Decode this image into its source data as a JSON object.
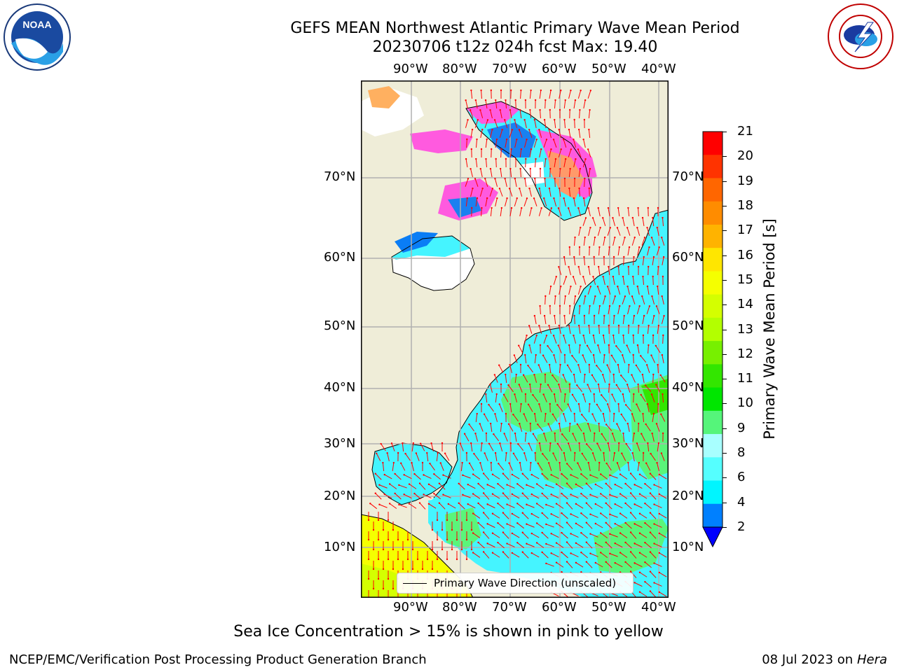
{
  "title_line1": "GEFS MEAN Northwest Atlantic Primary Wave Mean Period",
  "title_line2": "20230706 t12z 024h fcst   Max: 19.40",
  "lon_labels": [
    "90°W",
    "80°W",
    "70°W",
    "60°W",
    "50°W",
    "40°W"
  ],
  "lat_labels": [
    "70°N",
    "60°N",
    "50°N",
    "40°N",
    "30°N",
    "20°N",
    "10°N"
  ],
  "colorbar": {
    "label": "Primary Wave Mean Period [s]",
    "ticks": [
      "21",
      "20",
      "19",
      "18",
      "17",
      "16",
      "15",
      "14",
      "13",
      "12",
      "11",
      "10",
      "9",
      "8",
      "6",
      "4",
      "2"
    ],
    "colors": [
      "#ff0000",
      "#ff3300",
      "#ff6600",
      "#ff8c00",
      "#ffb300",
      "#ffe600",
      "#f5ff00",
      "#d4ff00",
      "#b3ff00",
      "#77f000",
      "#33e600",
      "#00e600",
      "#55f57a",
      "#a8ffff",
      "#55ffff",
      "#00f5ff",
      "#0080ff"
    ],
    "underflow_color": "#0000ff"
  },
  "legend_label": "Primary Wave Direction (unscaled)",
  "ice_note": "Sea Ice Concentration > 15% is shown in pink to yellow",
  "footer_left": "NCEP/EMC/Verification Post Processing Product Generation Branch",
  "footer_date": "08 Jul 2023 on ",
  "footer_host": "Hera",
  "logos": {
    "noaa_text": "NOAA",
    "nws_text": "NATIONAL WEATHER SERVICE"
  }
}
